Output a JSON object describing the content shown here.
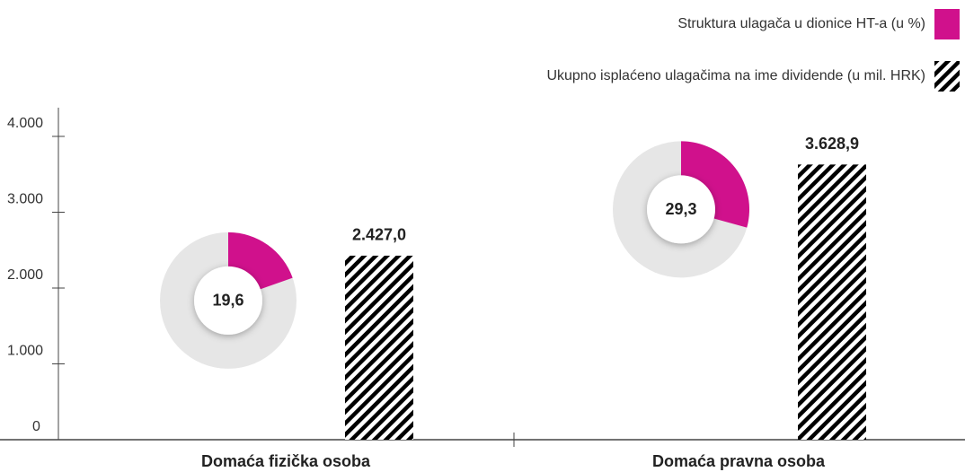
{
  "chart_data": {
    "type": "bar_donut",
    "categories": [
      "Domaća fizička osoba",
      "Domaća pravna osoba"
    ],
    "series": [
      {
        "name": "Struktura ulagača u dionice HT-a (u %)",
        "type": "donut",
        "color": "#d0118c",
        "values": [
          19.6,
          29.3
        ],
        "value_labels": [
          "19,6",
          "29,3"
        ]
      },
      {
        "name": "Ukupno isplaćeno ulagačima na ime dividende (u mil. HRK)",
        "type": "bar",
        "color": "#000000",
        "values": [
          2427.0,
          3628.9
        ],
        "value_labels": [
          "2.427,0",
          "3.628,9"
        ]
      }
    ],
    "ylim": [
      0,
      4000
    ],
    "yticks": [
      0,
      {
        "value": 1000,
        "label": "1.000"
      },
      {
        "value": 2000,
        "label": "2.000"
      },
      {
        "value": 3000,
        "label": "3.000"
      },
      {
        "value": 4000,
        "label": "4.000"
      }
    ],
    "legend": "top-right"
  }
}
